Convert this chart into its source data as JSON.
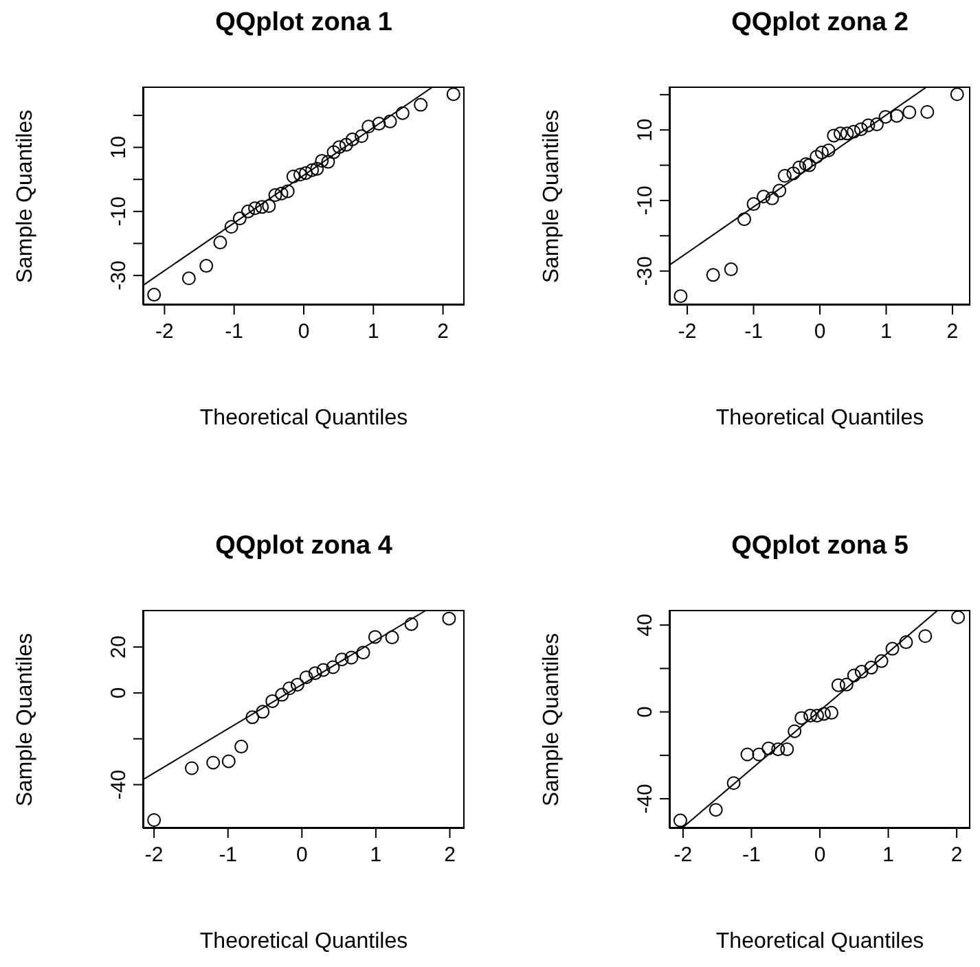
{
  "chart_data": [
    {
      "type": "scatter",
      "title": "QQplot zona 1",
      "xlabel": "Theoretical Quantiles",
      "ylabel": "Sample Quantiles",
      "xlim": [
        -2.31,
        2.31
      ],
      "ylim": [
        -39.2,
        29
      ],
      "xticks": [
        -2,
        -1,
        0,
        1,
        2
      ],
      "yticks": [
        {
          "value": 20,
          "label": null
        },
        10,
        {
          "value": 0,
          "label": null
        },
        -10,
        {
          "value": -20,
          "label": null
        },
        -30
      ],
      "series": [
        {
          "marker": "circle",
          "color": "#000000",
          "x": [
            -2.15,
            -1.65,
            -1.4,
            -1.2,
            -1.04,
            -0.92,
            -0.8,
            -0.7,
            -0.6,
            -0.5,
            -0.41,
            -0.32,
            -0.23,
            -0.15,
            -0.05,
            0.03,
            0.12,
            0.19,
            0.26,
            0.35,
            0.43,
            0.51,
            0.61,
            0.7,
            0.83,
            0.93,
            1.08,
            1.24,
            1.42,
            1.68,
            2.15
          ],
          "values": [
            -36,
            -30.9,
            -27,
            -19.7,
            -14.8,
            -12.2,
            -10,
            -9,
            -8.6,
            -8.3,
            -4.9,
            -4.4,
            -3.7,
            0.9,
            1.5,
            2,
            2.9,
            3.3,
            5.8,
            5.5,
            8.5,
            10.1,
            10.8,
            12.5,
            13.5,
            16.5,
            17.4,
            18.1,
            20.7,
            23.3,
            26.6
          ]
        },
        {
          "type": "line",
          "marker": "none",
          "color": "#000000",
          "x": [
            -2.31,
            1.86
          ],
          "values": [
            -33.1,
            29
          ]
        }
      ]
    },
    {
      "type": "scatter",
      "title": "QQplot zona 2",
      "xlabel": "Theoretical Quantiles",
      "ylabel": "Sample Quantiles",
      "xlim": [
        -2.27,
        2.27
      ],
      "ylim": [
        -39.6,
        22.3
      ],
      "xticks": [
        -2,
        -1,
        0,
        1,
        2
      ],
      "yticks": [
        {
          "value": 20,
          "label": null
        },
        10,
        {
          "value": 0,
          "label": null
        },
        -10,
        {
          "value": -20,
          "label": null
        },
        -30
      ],
      "series": [
        {
          "marker": "circle",
          "color": "#000000",
          "x": [
            -2.1,
            -1.61,
            -1.34,
            -1.14,
            -1,
            -0.85,
            -0.72,
            -0.61,
            -0.53,
            -0.4,
            -0.31,
            -0.21,
            -0.16,
            -0.05,
            0.03,
            0.13,
            0.21,
            0.31,
            0.41,
            0.51,
            0.62,
            0.73,
            0.86,
            0.99,
            1.16,
            1.35,
            1.62,
            2.07
          ],
          "values": [
            -37.1,
            -31.1,
            -29.5,
            -15.3,
            -11,
            -8.9,
            -9.4,
            -7.2,
            -3,
            -2.3,
            -0.6,
            0.3,
            0,
            2.4,
            3.6,
            4.2,
            8.4,
            9,
            9,
            9.5,
            10.2,
            11.3,
            11.6,
            13.7,
            14,
            15,
            15.1,
            20.1
          ]
        },
        {
          "type": "line",
          "marker": "none",
          "color": "#000000",
          "x": [
            -2.26,
            1.62
          ],
          "values": [
            -28.2,
            22.3
          ]
        }
      ]
    },
    {
      "type": "scatter",
      "title": "QQplot zona 4",
      "xlabel": "Theoretical Quantiles",
      "ylabel": "Sample Quantiles",
      "xlim": [
        -2.15,
        2.2
      ],
      "ylim": [
        -59,
        36.2
      ],
      "xticks": [
        -2,
        -1,
        0,
        1,
        2
      ],
      "yticks": [
        20,
        0,
        {
          "value": -20,
          "label": null
        },
        -40
      ],
      "series": [
        {
          "marker": "circle",
          "color": "#000000",
          "x": [
            -2,
            -1.49,
            -1.2,
            -0.99,
            -0.82,
            -0.67,
            -0.53,
            -0.4,
            -0.27,
            -0.17,
            -0.06,
            0.06,
            0.18,
            0.29,
            0.42,
            0.54,
            0.67,
            0.83,
            0.99,
            1.22,
            1.48,
            1.99
          ],
          "values": [
            -55.4,
            -32.8,
            -30.4,
            -29.8,
            -23.4,
            -10.6,
            -8.2,
            -3.6,
            -0.8,
            2,
            3.6,
            6.8,
            8.6,
            10,
            11.2,
            14.6,
            15.4,
            17.6,
            24.4,
            24.2,
            30,
            32.4
          ]
        },
        {
          "type": "line",
          "marker": "none",
          "color": "#000000",
          "x": [
            -2.15,
            1.69
          ],
          "values": [
            -37.8,
            36.2
          ]
        }
      ]
    },
    {
      "type": "scatter",
      "title": "QQplot zona 5",
      "xlabel": "Theoretical Quantiles",
      "ylabel": "Sample Quantiles",
      "xlim": [
        -2.2,
        2.2
      ],
      "ylim": [
        -53.6,
        47
      ],
      "xticks": [
        -2,
        -1,
        0,
        1,
        2
      ],
      "yticks": [
        40,
        {
          "value": 20,
          "label": null
        },
        0,
        {
          "value": -20,
          "label": null
        },
        -40
      ],
      "series": [
        {
          "marker": "circle",
          "color": "#000000",
          "x": [
            -2.04,
            -1.52,
            -1.26,
            -1.06,
            -0.89,
            -0.75,
            -0.61,
            -0.48,
            -0.37,
            -0.27,
            -0.14,
            -0.04,
            0.06,
            0.17,
            0.27,
            0.39,
            0.5,
            0.61,
            0.75,
            0.9,
            1.06,
            1.26,
            1.54,
            2.02
          ],
          "values": [
            -50,
            -45.1,
            -32.8,
            -19.6,
            -19.6,
            -16.8,
            -17.2,
            -17.2,
            -8.9,
            -2.8,
            -1.7,
            -1.7,
            -0.9,
            -0.4,
            12.3,
            12.6,
            16.8,
            18.5,
            20.4,
            23.4,
            29.1,
            32.1,
            34.9,
            43.6
          ]
        },
        {
          "type": "line",
          "marker": "none",
          "color": "#000000",
          "x": [
            -2.01,
            1.73
          ],
          "values": [
            -53.4,
            47
          ]
        }
      ]
    }
  ]
}
